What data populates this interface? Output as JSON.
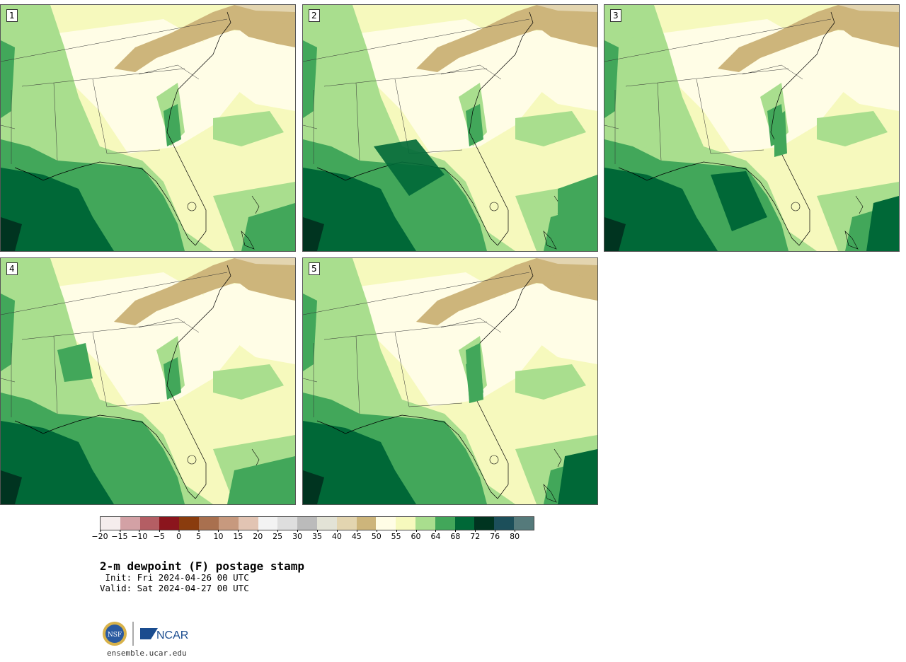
{
  "panels": [
    {
      "label": "1"
    },
    {
      "label": "2"
    },
    {
      "label": "3"
    },
    {
      "label": "4"
    },
    {
      "label": "5"
    }
  ],
  "colorbar": {
    "colors": [
      "#f5eded",
      "#d3a1a5",
      "#b45e64",
      "#8b151d",
      "#8a3c0e",
      "#a9704f",
      "#c7997e",
      "#e2c4b3",
      "#f3f3f3",
      "#dedede",
      "#bbbbbb",
      "#e3e3d6",
      "#e3d5b0",
      "#cdb57b",
      "#fffde6",
      "#f6f9bd",
      "#a9de8e",
      "#42a75a",
      "#006837",
      "#003420",
      "#1c4f5a",
      "#557a7b"
    ],
    "ticks": [
      "−20",
      "−15",
      "−10",
      "−5",
      "0",
      "5",
      "10",
      "15",
      "20",
      "25",
      "30",
      "35",
      "40",
      "45",
      "50",
      "55",
      "60",
      "64",
      "68",
      "72",
      "76",
      "80"
    ]
  },
  "map_colors": {
    "brown": "#cdb57b",
    "tan": "#e3d5b0",
    "pale_yellow": "#fffde6",
    "light_yellow": "#f6f9bd",
    "light_green": "#a9de8e",
    "green": "#42a75a",
    "dark_green": "#006837",
    "darkest_green": "#003420"
  },
  "title": "2-m dewpoint (F) postage stamp",
  "init": " Init: Fri 2024-04-26 00 UTC",
  "valid": "Valid: Sat 2024-04-27 00 UTC",
  "logos": {
    "nsf": "NSF",
    "ncar": "NCAR"
  },
  "site": "ensemble.ucar.edu"
}
